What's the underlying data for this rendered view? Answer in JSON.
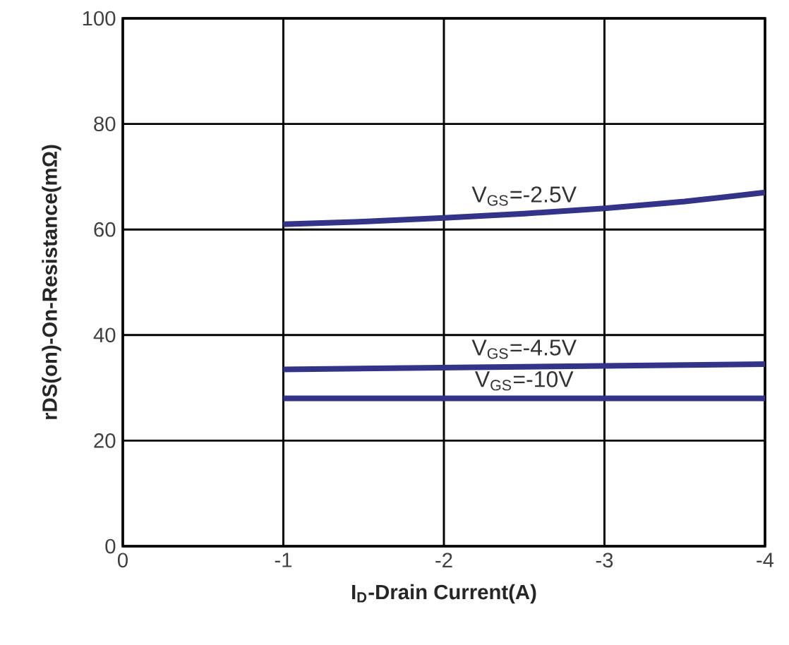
{
  "chart_data": {
    "type": "line",
    "xlabel": "I$_{D}$-Drain Current(A)",
    "ylabel": "rDS(on)-On-Resistance(mΩ)",
    "xlim": [
      0,
      -4
    ],
    "xticks": [
      0,
      -1,
      -2,
      -3,
      -4
    ],
    "ylim": [
      0,
      100
    ],
    "yticks": [
      0,
      20,
      40,
      60,
      80,
      100
    ],
    "grid": true,
    "line_style": "solid",
    "marker": "none",
    "series": [
      {
        "name": "V$_{GS}$=-2.5V",
        "color": "#33338a",
        "x": [
          -1,
          -1.5,
          -2,
          -2.5,
          -3,
          -3.5,
          -4
        ],
        "values": [
          61,
          61.5,
          62.2,
          63,
          64,
          65.3,
          67
        ]
      },
      {
        "name": "V$_{GS}$=-4.5V",
        "color": "#33338a",
        "x": [
          -1,
          -4
        ],
        "values": [
          33.5,
          34.5
        ]
      },
      {
        "name": "V$_{GS}$=-10V",
        "color": "#33338a",
        "x": [
          -1,
          -4
        ],
        "values": [
          28,
          28
        ]
      }
    ]
  }
}
